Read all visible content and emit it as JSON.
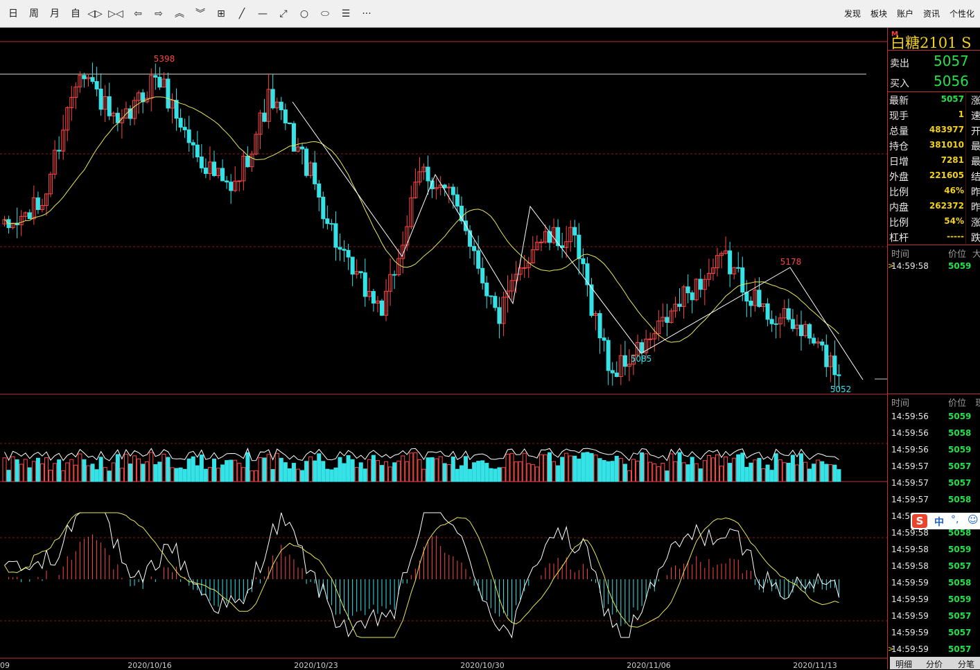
{
  "toolbar": {
    "buttons": [
      {
        "name": "period-day-button",
        "label": "日"
      },
      {
        "name": "period-week-button",
        "label": "周"
      },
      {
        "name": "period-month-button",
        "label": "月"
      },
      {
        "name": "period-custom-button",
        "label": "自"
      },
      {
        "name": "zoom-out-icon",
        "label": "◁▷"
      },
      {
        "name": "zoom-in-icon",
        "label": "▷◁"
      },
      {
        "name": "scroll-left-icon",
        "label": "⇦"
      },
      {
        "name": "scroll-right-icon",
        "label": "⇨"
      },
      {
        "name": "scroll-up-icon",
        "label": "︽"
      },
      {
        "name": "scroll-down-icon",
        "label": "︾"
      },
      {
        "name": "layout-icon",
        "label": "⊞"
      },
      {
        "name": "draw-line-icon",
        "label": "╱"
      },
      {
        "name": "draw-hline-icon",
        "label": "—"
      },
      {
        "name": "draw-segment-icon",
        "label": "⤢"
      },
      {
        "name": "draw-circle-icon",
        "label": "○"
      },
      {
        "name": "draw-ellipse-icon",
        "label": "⬭"
      },
      {
        "name": "draw-text-icon",
        "label": "☰"
      },
      {
        "name": "more-tools-icon",
        "label": "···"
      }
    ],
    "menus": [
      {
        "name": "menu-discover",
        "label": "发现"
      },
      {
        "name": "menu-sectors",
        "label": "板块"
      },
      {
        "name": "menu-account",
        "label": "账户"
      },
      {
        "name": "menu-news",
        "label": "资讯"
      },
      {
        "name": "menu-personalize",
        "label": "个性化"
      }
    ]
  },
  "chart_data": {
    "type": "candlestick",
    "instrument": "白糖2101",
    "price_axis": {
      "min": 5030,
      "max": 5420
    },
    "x_axis_labels": [
      "09",
      "2020/10/16",
      "2020/10/23",
      "2020/10/30",
      "2020/11/06",
      "2020/11/13"
    ],
    "annotations": [
      {
        "text": "5398",
        "color": "#ff4444"
      },
      {
        "text": "5085",
        "color": "#35e3e7"
      },
      {
        "text": "5178",
        "color": "#ff4444"
      },
      {
        "text": "5052",
        "color": "#35e3e7"
      }
    ],
    "key_points": [
      5210,
      5240,
      5398,
      5320,
      5385,
      5300,
      5250,
      5360,
      5280,
      5170,
      5120,
      5280,
      5235,
      5110,
      5200,
      5200,
      5050,
      5085,
      5140,
      5178,
      5120,
      5100,
      5052
    ]
  },
  "sidebar": {
    "title": "白糖2101",
    "title_suffix": "S",
    "marker": "M",
    "ask_label": "卖出",
    "ask_price": "5057",
    "bid_label": "买入",
    "bid_price": "5056",
    "quotes": [
      {
        "label": "最新",
        "value": "5057",
        "color": "#22e14a",
        "right": "涨"
      },
      {
        "label": "现手",
        "value": "1",
        "color": "#f2d11a",
        "right": "速"
      },
      {
        "label": "总量",
        "value": "483977",
        "color": "#f2d11a",
        "right": "开"
      },
      {
        "label": "持仓",
        "value": "381010",
        "color": "#f2d11a",
        "right": "最"
      },
      {
        "label": "日增",
        "value": "7281",
        "color": "#f2d11a",
        "right": "最"
      },
      {
        "label": "外盘",
        "value": "221605",
        "color": "#f2d11a",
        "right": "结"
      },
      {
        "label": "比例",
        "value": "46%",
        "color": "#f2d11a",
        "right": "昨"
      },
      {
        "label": "内盘",
        "value": "262372",
        "color": "#f2d11a",
        "right": "昨"
      },
      {
        "label": "比例",
        "value": "54%",
        "color": "#f2d11a",
        "right": "涨"
      },
      {
        "label": "杠杆",
        "value": "-----",
        "color": "#f2d11a",
        "right": "跌"
      }
    ],
    "tick_header1": {
      "time": "时间",
      "price": "价位",
      "extra": "大"
    },
    "tick_first": {
      "time": "14:59:58",
      "price": "5059"
    },
    "tick_header2": {
      "time": "时间",
      "price": "价位",
      "extra": "现"
    },
    "ticks": [
      {
        "time": "14:59:56",
        "price": "5059"
      },
      {
        "time": "14:59:56",
        "price": "5058"
      },
      {
        "time": "14:59:56",
        "price": "5059"
      },
      {
        "time": "14:59:57",
        "price": "5057"
      },
      {
        "time": "14:59:57",
        "price": "5057"
      },
      {
        "time": "14:59:57",
        "price": "5058"
      },
      {
        "time": "14:59:58",
        "price": "5058"
      },
      {
        "time": "14:59:58",
        "price": "5058"
      },
      {
        "time": "14:59:58",
        "price": "5059"
      },
      {
        "time": "14:59:58",
        "price": "5057"
      },
      {
        "time": "14:59:59",
        "price": "5058"
      },
      {
        "time": "14:59:59",
        "price": "5059"
      },
      {
        "time": "14:59:59",
        "price": "5057"
      },
      {
        "time": "14:59:59",
        "price": "5057"
      },
      {
        "time": "14:59:59",
        "price": "5057"
      }
    ],
    "bottom_tabs": [
      "明细",
      "分价",
      "分笔"
    ],
    "ime": {
      "label": "中",
      "extra": "°,"
    }
  },
  "colors": {
    "up": "#ff4747",
    "down": "#35e3e7",
    "ma": "#e8e85a",
    "grid": "#8b1a1a",
    "line": "#ffffff"
  }
}
